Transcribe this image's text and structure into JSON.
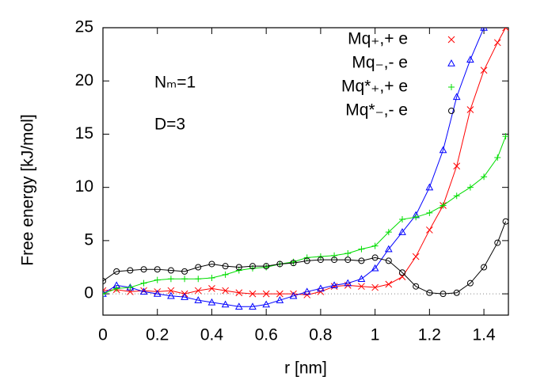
{
  "chart_data": {
    "type": "line",
    "x_label": "r [nm]",
    "y_label": "Free energy    [kJ/mol]",
    "annotations": [
      "Nₘ=1",
      "D=3"
    ],
    "x": [
      0,
      0.05,
      0.1,
      0.15,
      0.2,
      0.25,
      0.3,
      0.35,
      0.4,
      0.45,
      0.5,
      0.55,
      0.6,
      0.65,
      0.7,
      0.75,
      0.8,
      0.85,
      0.9,
      0.95,
      1.0,
      1.05,
      1.1,
      1.15,
      1.2,
      1.25,
      1.3,
      1.35,
      1.4,
      1.45,
      1.48
    ],
    "series": [
      {
        "name": "Mq₊,+ e",
        "color": "#ff0000",
        "marker": "x",
        "values": [
          0.3,
          0.4,
          0.2,
          0.3,
          0.2,
          0.3,
          0,
          0.3,
          0.5,
          0.3,
          0.1,
          0,
          0,
          0,
          0,
          -0.1,
          0.2,
          0.7,
          0.8,
          0.7,
          0.6,
          0.9,
          1.6,
          3.5,
          6,
          8.3,
          12,
          17.3,
          21,
          23.6,
          25
        ]
      },
      {
        "name": "Mq₋,- e",
        "color": "#0000ff",
        "marker": "triangle",
        "values": [
          0,
          0.8,
          0.6,
          0.2,
          0,
          -0.2,
          -0.3,
          -0.6,
          -0.8,
          -1.0,
          -1.2,
          -1.2,
          -1.0,
          -0.6,
          -0.2,
          0.2,
          0.5,
          0.8,
          1.0,
          1.4,
          2.4,
          4.2,
          5.8,
          7.4,
          10,
          13.5,
          18.5,
          22,
          25,
          null,
          null
        ]
      },
      {
        "name": "Mq*₊,+ e",
        "color": "#00dd00",
        "marker": "plus",
        "values": [
          0,
          0.5,
          0.6,
          1.0,
          1.3,
          1.4,
          1.4,
          1.4,
          1.5,
          1.8,
          2.2,
          2.4,
          2.5,
          2.8,
          3.0,
          3.4,
          3.5,
          3.6,
          3.8,
          4.2,
          4.5,
          5.8,
          7.0,
          7.2,
          7.6,
          8.3,
          9.2,
          10.0,
          11.0,
          12.8,
          14.8
        ]
      },
      {
        "name": "Mq*₋,- e",
        "color": "#000000",
        "marker": "circle",
        "values": [
          1.2,
          2.1,
          2.2,
          2.3,
          2.3,
          2.2,
          2.1,
          2.5,
          2.8,
          2.6,
          2.5,
          2.6,
          2.6,
          2.8,
          2.9,
          3.1,
          3.2,
          3.2,
          3.2,
          3.1,
          3.4,
          3.1,
          2.0,
          0.7,
          0.1,
          0,
          0.1,
          1.0,
          2.5,
          4.8,
          6.8
        ]
      }
    ],
    "xlim": [
      0,
      1.49
    ],
    "xticks": [
      0,
      0.2,
      0.4,
      0.6,
      0.8,
      1,
      1.2,
      1.4
    ],
    "ylim": [
      -2,
      25
    ],
    "yticks": [
      0,
      5,
      10,
      15,
      20,
      25
    ],
    "zero_line": true,
    "legend": "top-right"
  }
}
